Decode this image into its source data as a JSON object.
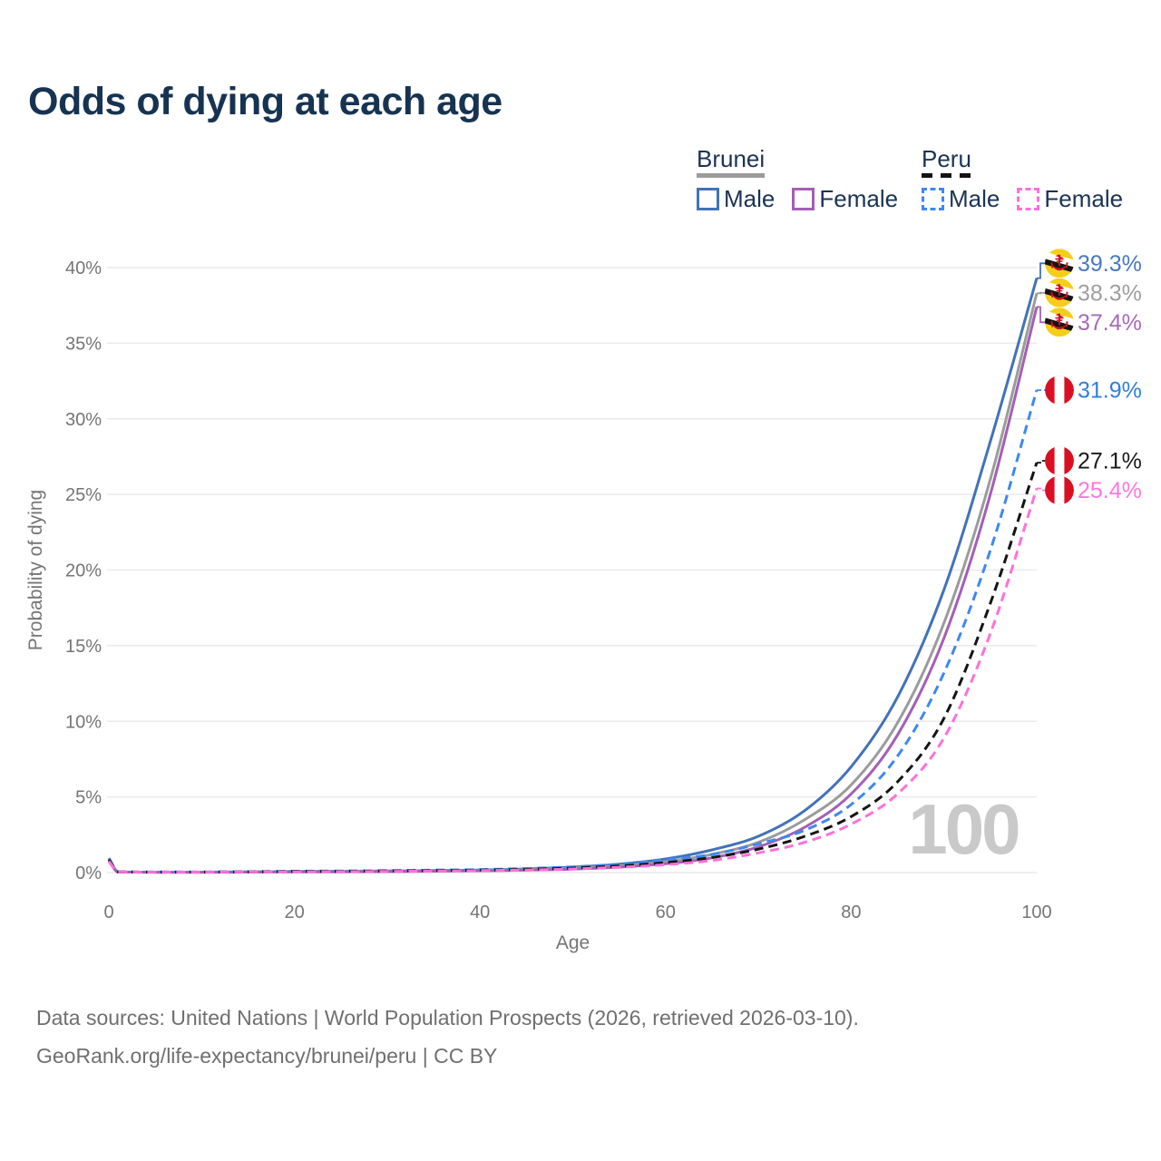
{
  "title": "Odds of dying at each age",
  "legend": {
    "groups": [
      {
        "name": "Brunei",
        "line_style": "solid",
        "line_color": "#9b9b9b",
        "items": [
          {
            "label": "Male",
            "color": "#4272b8",
            "style": "solid"
          },
          {
            "label": "Female",
            "color": "#a35fb5",
            "style": "solid"
          }
        ]
      },
      {
        "name": "Peru",
        "line_style": "dashed",
        "line_color": "#141414",
        "items": [
          {
            "label": "Male",
            "color": "#3f87f0",
            "style": "dashed"
          },
          {
            "label": "Female",
            "color": "#ff70d9",
            "style": "dashed"
          }
        ]
      }
    ]
  },
  "chart_data": {
    "type": "line",
    "title": "Odds of dying at each age",
    "xlabel": "Age",
    "ylabel": "Probability of dying",
    "xlim": [
      0,
      100
    ],
    "ylim_percent": [
      0,
      40
    ],
    "x_ticks": [
      0,
      20,
      40,
      60,
      80,
      100
    ],
    "y_ticks_percent": [
      0,
      5,
      10,
      15,
      20,
      25,
      30,
      35,
      40
    ],
    "grid": "horizontal",
    "legend_position": "top-right",
    "watermark": "100",
    "ages": [
      0,
      1,
      5,
      10,
      15,
      20,
      25,
      30,
      35,
      40,
      45,
      50,
      55,
      60,
      65,
      70,
      75,
      80,
      85,
      90,
      95,
      100
    ],
    "series": [
      {
        "name": "Brunei Male",
        "country": "Brunei",
        "sex": "Male",
        "flag": "brunei",
        "color": "#4272b8",
        "label_color": "#4779c4",
        "dash": "solid",
        "end_label": "39.3%",
        "values_percent": [
          0.95,
          0.05,
          0.03,
          0.03,
          0.05,
          0.08,
          0.09,
          0.1,
          0.13,
          0.17,
          0.24,
          0.36,
          0.56,
          0.9,
          1.5,
          2.4,
          4.1,
          7.0,
          11.6,
          18.7,
          28.5,
          39.3
        ]
      },
      {
        "name": "Brunei Both sexes",
        "country": "Brunei",
        "sex": "Both sexes",
        "flag": "brunei",
        "color": "#9b9b9b",
        "label_color": "#9e9e9e",
        "dash": "solid",
        "end_label": "38.3%",
        "values_percent": [
          0.85,
          0.05,
          0.03,
          0.03,
          0.04,
          0.06,
          0.07,
          0.08,
          0.11,
          0.14,
          0.2,
          0.29,
          0.45,
          0.72,
          1.2,
          2.0,
          3.5,
          5.8,
          9.9,
          16.5,
          26.0,
          38.3
        ]
      },
      {
        "name": "Brunei Female",
        "country": "Brunei",
        "sex": "Female",
        "flag": "brunei",
        "color": "#a35fb5",
        "label_color": "#a66bb5",
        "dash": "solid",
        "end_label": "37.4%",
        "values_percent": [
          0.75,
          0.04,
          0.02,
          0.02,
          0.03,
          0.04,
          0.05,
          0.06,
          0.09,
          0.12,
          0.16,
          0.23,
          0.36,
          0.58,
          0.97,
          1.7,
          3.0,
          5.2,
          9.1,
          15.5,
          25.0,
          37.4
        ]
      },
      {
        "name": "Peru Male",
        "country": "Peru",
        "sex": "Male",
        "flag": "peru",
        "color": "#3f87f0",
        "label_color": "#2f7fe0",
        "dash": "dashed",
        "end_label": "31.9%",
        "values_percent": [
          0.95,
          0.06,
          0.04,
          0.04,
          0.06,
          0.09,
          0.11,
          0.13,
          0.16,
          0.2,
          0.27,
          0.38,
          0.56,
          0.85,
          1.2,
          1.9,
          2.8,
          4.5,
          7.7,
          13.2,
          21.3,
          31.9
        ]
      },
      {
        "name": "Peru Both sexes",
        "country": "Peru",
        "sex": "Both sexes",
        "flag": "peru",
        "color": "#141414",
        "label_color": "#1a1a1a",
        "dash": "dashed",
        "end_label": "27.1%",
        "values_percent": [
          0.85,
          0.05,
          0.03,
          0.03,
          0.05,
          0.07,
          0.08,
          0.1,
          0.13,
          0.16,
          0.21,
          0.3,
          0.44,
          0.66,
          1.0,
          1.55,
          2.4,
          3.7,
          6.0,
          10.2,
          17.8,
          27.1
        ]
      },
      {
        "name": "Peru Female",
        "country": "Peru",
        "sex": "Female",
        "flag": "peru",
        "color": "#ff70d9",
        "label_color": "#ff77dd",
        "dash": "dashed",
        "end_label": "25.4%",
        "values_percent": [
          0.75,
          0.05,
          0.03,
          0.03,
          0.04,
          0.05,
          0.06,
          0.08,
          0.1,
          0.13,
          0.17,
          0.24,
          0.35,
          0.52,
          0.8,
          1.3,
          2.0,
          3.2,
          5.2,
          8.9,
          15.8,
          25.4
        ]
      }
    ]
  },
  "footer": {
    "line1": "Data sources: United Nations | World Population Prospects (2026, retrieved 2026-03-10).",
    "line2": "GeoRank.org/life-expectancy/brunei/peru | CC BY"
  }
}
